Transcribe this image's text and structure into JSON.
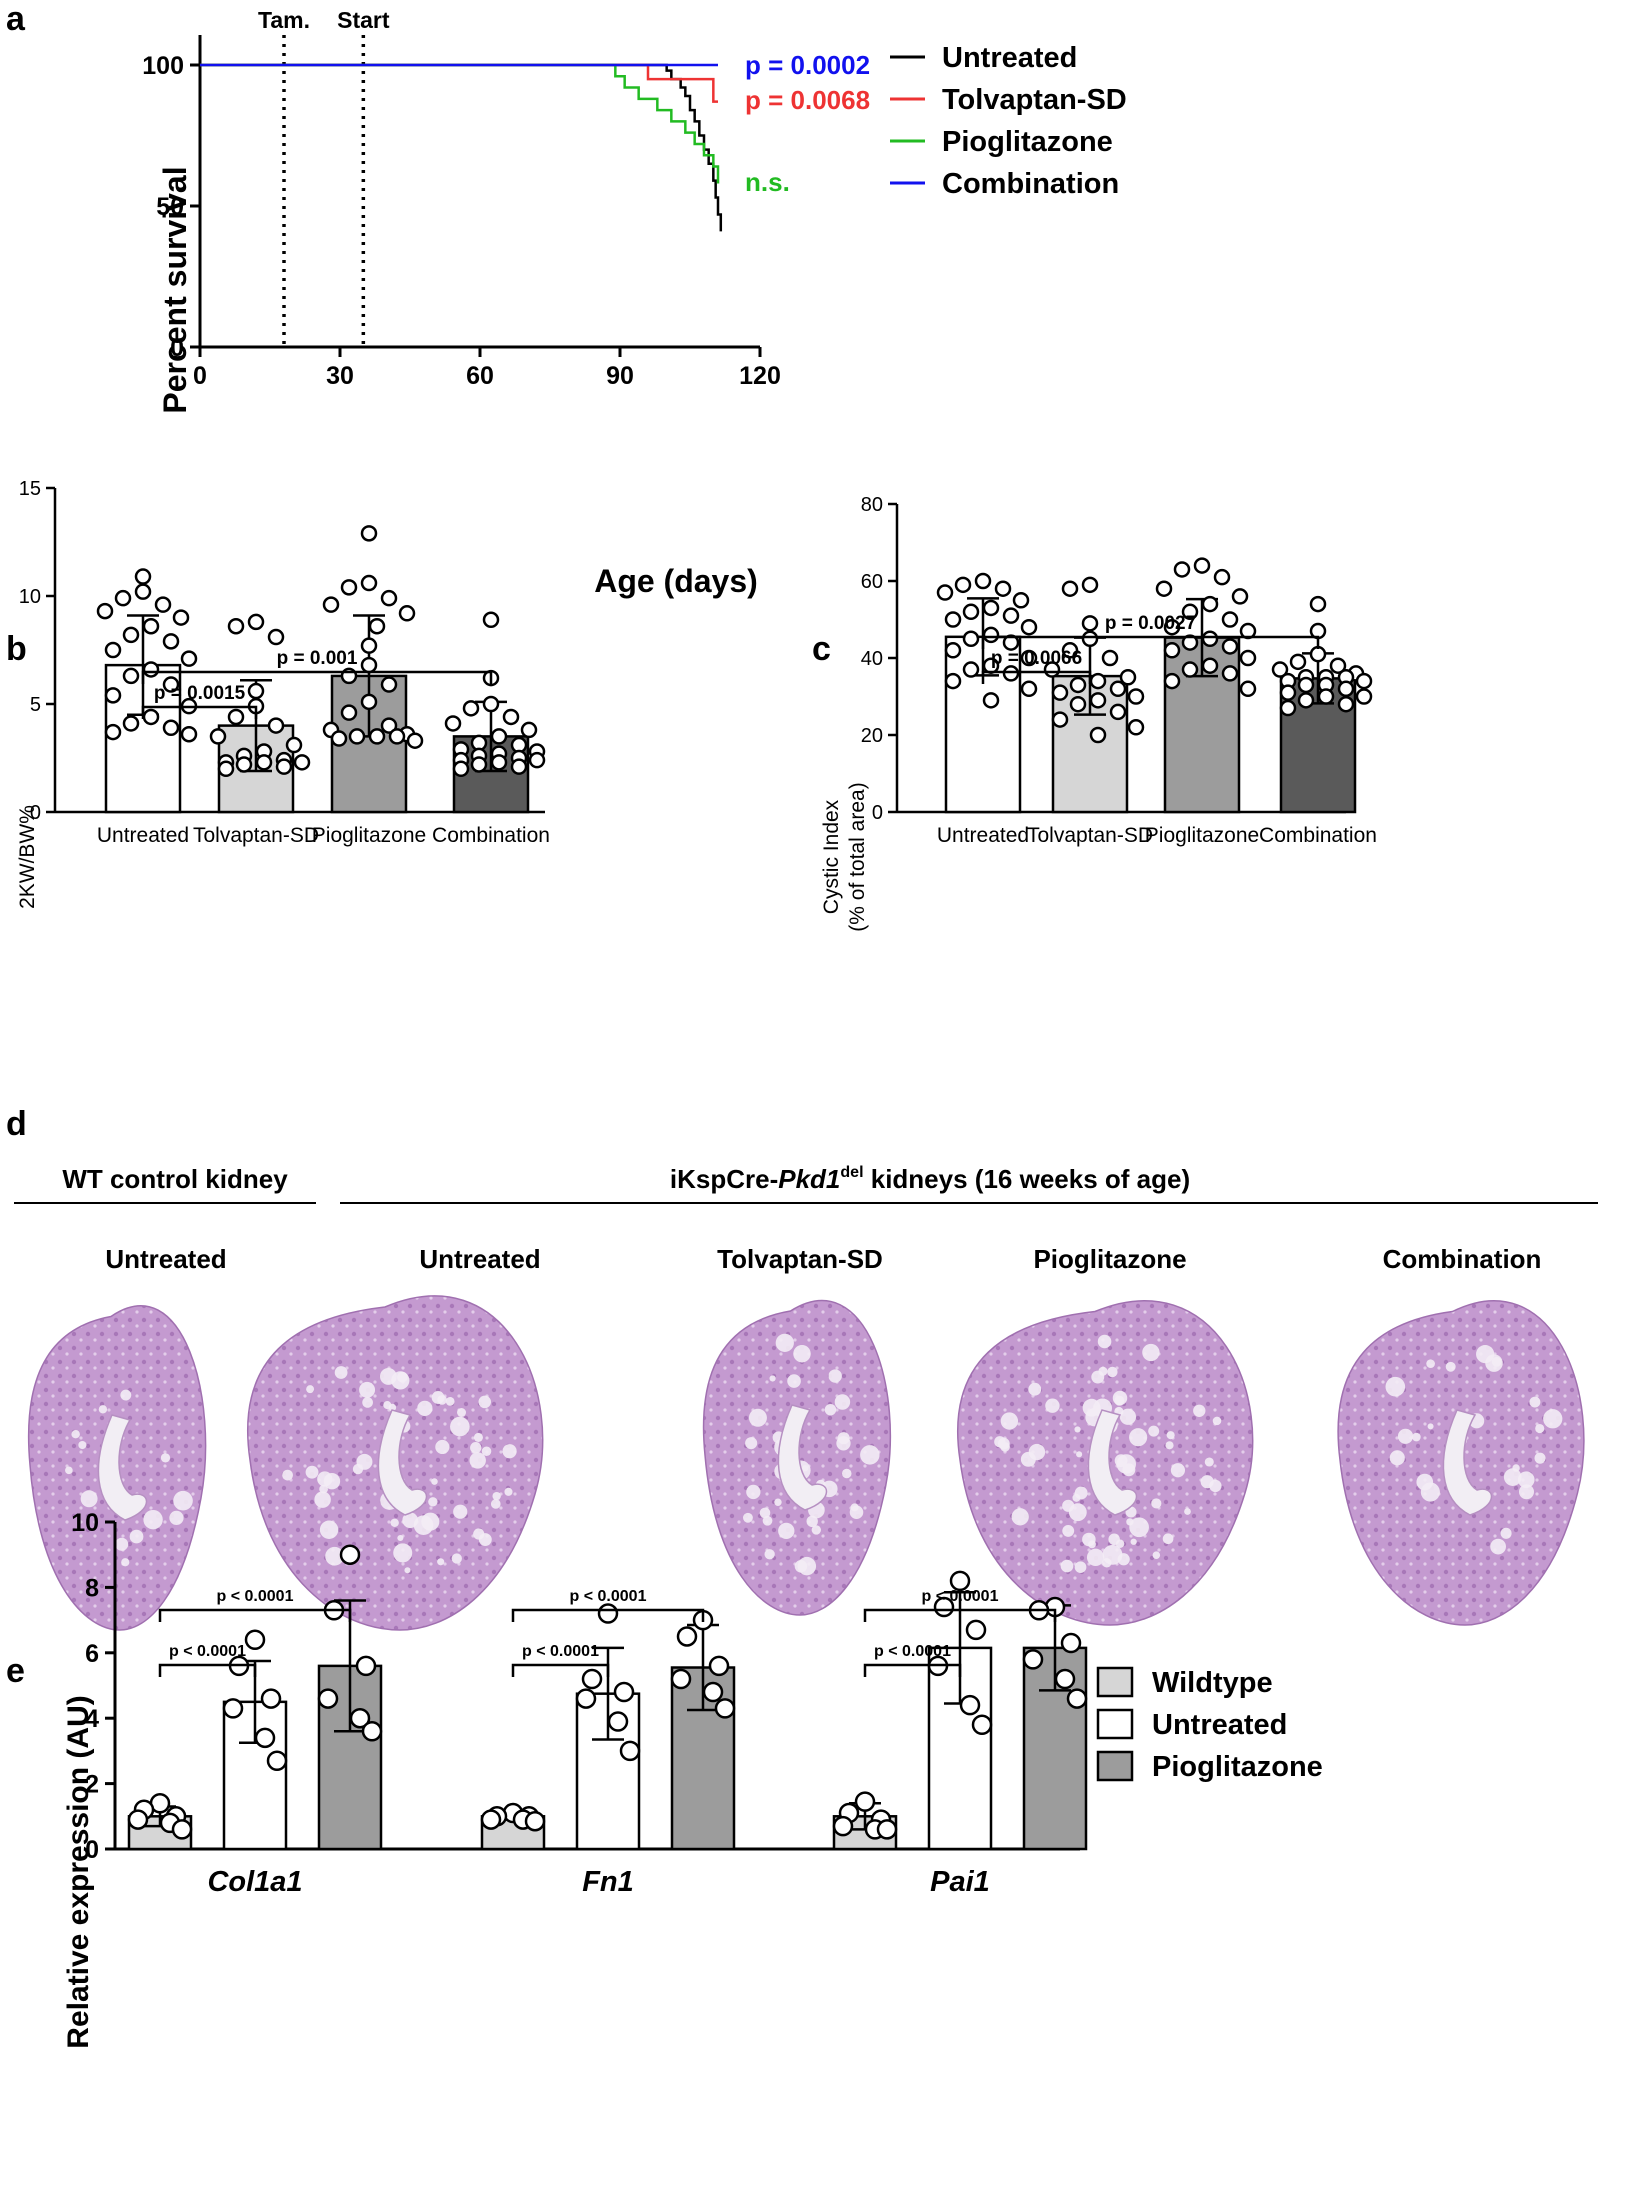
{
  "chart_data": [
    {
      "panel": "a",
      "type": "line",
      "title": "",
      "xlabel": "Age (days)",
      "ylabel": "Percent survival",
      "xlim": [
        0,
        120
      ],
      "ylim": [
        0,
        100
      ],
      "xticks": [
        0,
        30,
        60,
        90,
        120
      ],
      "yticks": [
        0,
        50,
        100
      ],
      "annotations": [
        {
          "label": "Tam.",
          "x": 18
        },
        {
          "label": "Start",
          "x": 35
        }
      ],
      "series": [
        {
          "name": "Untreated",
          "color": "#000000",
          "x": [
            0,
            100,
            101,
            103,
            104,
            105,
            106,
            107,
            108,
            109,
            110,
            110.5,
            111,
            111.6
          ],
          "y": [
            100,
            98,
            95,
            92,
            89,
            84,
            80,
            75,
            70,
            65,
            59,
            53,
            47,
            41
          ]
        },
        {
          "name": "Tolvaptan-SD",
          "color": "#ee3333",
          "x": [
            0,
            96,
            110,
            111
          ],
          "y": [
            100,
            95,
            87,
            87
          ]
        },
        {
          "name": "Pioglitazone",
          "color": "#22bb22",
          "x": [
            0,
            89,
            91,
            94,
            98,
            101,
            104,
            106,
            108,
            110,
            111
          ],
          "y": [
            100,
            96,
            92,
            88,
            84,
            80,
            76,
            72,
            68,
            64,
            58
          ]
        },
        {
          "name": "Combination",
          "color": "#1111ee",
          "x": [
            0,
            111
          ],
          "y": [
            100,
            100
          ]
        }
      ],
      "pvalues": [
        {
          "label": "p = 0.0002",
          "color": "#1111ee"
        },
        {
          "label": "p = 0.0068",
          "color": "#ee3333"
        },
        {
          "label": "n.s.",
          "color": "#22bb22"
        }
      ]
    },
    {
      "panel": "b",
      "type": "bar",
      "ylabel": "2KW/BW%",
      "ylim": [
        0,
        15
      ],
      "yticks": [
        0,
        5,
        10,
        15
      ],
      "categories": [
        "Untreated",
        "Tolvaptan-SD",
        "Pioglitazone",
        "Combination"
      ],
      "values": [
        6.8,
        4.0,
        6.3,
        3.5
      ],
      "errors": [
        2.3,
        2.1,
        2.8,
        1.6
      ],
      "colors": [
        "#ffffff",
        "#d6d6d6",
        "#9c9c9c",
        "#5a5a5a"
      ],
      "points": [
        [
          10.9,
          10.2,
          9.9,
          9.6,
          9.3,
          9.0,
          8.6,
          8.2,
          7.9,
          7.5,
          7.1,
          6.6,
          6.3,
          5.9,
          5.4,
          4.9,
          4.4,
          4.1,
          3.9,
          3.7,
          3.6
        ],
        [
          8.8,
          8.6,
          8.1,
          5.6,
          4.9,
          4.4,
          4.0,
          3.5,
          3.1,
          2.8,
          2.6,
          2.4,
          2.3,
          2.3,
          2.3,
          2.2,
          2.1,
          2.0
        ],
        [
          12.9,
          10.6,
          10.4,
          9.9,
          9.6,
          9.2,
          8.6,
          7.7,
          6.8,
          6.3,
          5.9,
          5.1,
          4.6,
          4.0,
          3.8,
          3.6,
          3.5,
          3.5,
          3.5,
          3.4,
          3.3
        ],
        [
          8.9,
          6.2,
          5.0,
          4.8,
          4.4,
          4.1,
          3.8,
          3.5,
          3.2,
          3.1,
          2.9,
          2.8,
          2.7,
          2.6,
          2.5,
          2.4,
          2.4,
          2.3,
          2.2,
          2.1,
          2.0
        ]
      ],
      "brackets": [
        {
          "from": 0,
          "to": 1,
          "label": "p = 0.0015"
        },
        {
          "from": 0,
          "to": 3,
          "label": "p = 0.001"
        }
      ]
    },
    {
      "panel": "c",
      "type": "bar",
      "ylabel": "Cystic Index",
      "ylabel2": "(% of total area)",
      "ylim": [
        0,
        80
      ],
      "yticks": [
        0,
        20,
        40,
        60,
        80
      ],
      "categories": [
        "Untreated",
        "Tolvaptan-SD",
        "Pioglitazone",
        "Combination"
      ],
      "values": [
        45.5,
        35.3,
        45.3,
        34.7
      ],
      "errors": [
        10.0,
        10.0,
        10.0,
        6.5
      ],
      "colors": [
        "#ffffff",
        "#d6d6d6",
        "#9c9c9c",
        "#5a5a5a"
      ],
      "points": [
        [
          60,
          59,
          58,
          57,
          55,
          53,
          52,
          51,
          50,
          48,
          46,
          45,
          44,
          42,
          40,
          38,
          37,
          36,
          34,
          32,
          29
        ],
        [
          59,
          58,
          49,
          45,
          42,
          40,
          37,
          35,
          34,
          33,
          32,
          31,
          30,
          29,
          28,
          26,
          24,
          22,
          20
        ],
        [
          64,
          63,
          61,
          58,
          56,
          54,
          52,
          50,
          48,
          47,
          45,
          44,
          43,
          42,
          40,
          38,
          37,
          36,
          34,
          32
        ],
        [
          54,
          47,
          41,
          39,
          38,
          37,
          36,
          35,
          35,
          35,
          34,
          34,
          33,
          33,
          32,
          31,
          30,
          30,
          29,
          28,
          27
        ]
      ],
      "brackets": [
        {
          "from": 0,
          "to": 1,
          "label": "p = 0.0066"
        },
        {
          "from": 0,
          "to": 3,
          "label": "p = 0.0027"
        }
      ]
    },
    {
      "panel": "e",
      "type": "bar",
      "ylabel": "Relative expression (AU)",
      "ylim": [
        0,
        10
      ],
      "yticks": [
        0,
        2,
        4,
        6,
        8,
        10
      ],
      "categories": [
        "Col1a1",
        "Fn1",
        "Pai1"
      ],
      "series": [
        {
          "name": "Wildtype",
          "color": "#d6d6d6",
          "values": [
            1.0,
            1.0,
            1.0
          ],
          "errors": [
            0.3,
            0.1,
            0.4
          ],
          "points": [
            [
              1.4,
              1.2,
              1.0,
              0.9,
              0.8,
              0.6
            ],
            [
              1.1,
              1.0,
              1.0,
              0.9,
              0.9,
              0.85
            ],
            [
              1.45,
              1.1,
              0.9,
              0.7,
              0.6,
              0.6
            ]
          ]
        },
        {
          "name": "Untreated",
          "color": "#ffffff",
          "values": [
            4.5,
            4.75,
            6.15
          ],
          "errors": [
            1.25,
            1.4,
            1.7
          ],
          "points": [
            [
              6.4,
              5.6,
              4.6,
              4.3,
              3.4,
              2.7
            ],
            [
              7.2,
              5.2,
              4.8,
              4.6,
              3.9,
              3.0
            ],
            [
              8.2,
              7.4,
              6.7,
              5.6,
              4.4,
              3.8
            ]
          ]
        },
        {
          "name": "Pioglitazone",
          "color": "#9c9c9c",
          "values": [
            5.6,
            5.55,
            6.15
          ],
          "errors": [
            2.0,
            1.3,
            1.3
          ],
          "points": [
            [
              9.0,
              7.3,
              5.6,
              4.6,
              4.0,
              3.6
            ],
            [
              7.0,
              6.5,
              5.6,
              5.2,
              4.8,
              4.3
            ],
            [
              7.4,
              7.3,
              6.3,
              5.8,
              5.2,
              4.6
            ]
          ]
        }
      ],
      "brackets": [
        {
          "gene": 0,
          "from": 0,
          "to": 1,
          "label": "p < 0.0001"
        },
        {
          "gene": 0,
          "from": 0,
          "to": 2,
          "label": "p < 0.0001"
        },
        {
          "gene": 1,
          "from": 0,
          "to": 1,
          "label": "p < 0.0001"
        },
        {
          "gene": 1,
          "from": 0,
          "to": 2,
          "label": "p < 0.0001"
        },
        {
          "gene": 2,
          "from": 0,
          "to": 1,
          "label": "p < 0.0001"
        },
        {
          "gene": 2,
          "from": 0,
          "to": 2,
          "label": "p < 0.0001"
        }
      ]
    }
  ],
  "panels": {
    "a": "a",
    "b": "b",
    "c": "c",
    "d": "d",
    "e": "e"
  },
  "panel_d": {
    "left_header": "WT control kidney",
    "right_header_prefix": "iKspCre-",
    "right_header_gene": "Pkd1",
    "right_header_sup": "del",
    "right_header_suffix": " kidneys (16 weeks of age)",
    "labels": [
      "Untreated",
      "Untreated",
      "Tolvaptan-SD",
      "Pioglitazone",
      "Combination"
    ]
  }
}
